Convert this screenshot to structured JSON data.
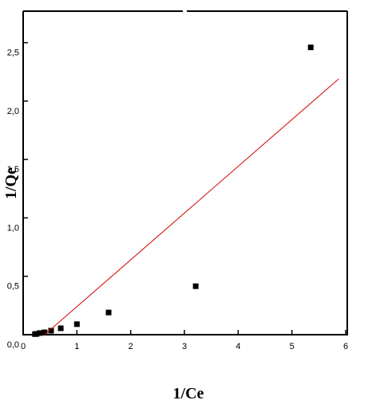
{
  "chart_data": {
    "type": "scatter",
    "x_label": "1/Ce",
    "y_label": "1/Qe",
    "xlim": [
      0,
      6
    ],
    "ylim": [
      0,
      2.77
    ],
    "xticks": [
      0,
      1,
      2,
      3,
      4,
      5,
      6
    ],
    "yticks": [
      {
        "value": 0,
        "label": "0,0"
      },
      {
        "value": 0.5,
        "label": "0,5"
      },
      {
        "value": 1.0,
        "label": "1,0"
      },
      {
        "value": 1.5,
        "label": "1,5"
      },
      {
        "value": 2.0,
        "label": "2,0"
      },
      {
        "value": 2.5,
        "label": "2,5"
      }
    ],
    "series": [
      {
        "color": "#000000",
        "marker": "square",
        "x": [
          0.22,
          0.25,
          0.31,
          0.4,
          0.52,
          0.7,
          1.0,
          1.59,
          3.21,
          5.35
        ],
        "values": [
          0.005,
          0.007,
          0.014,
          0.02,
          0.034,
          0.055,
          0.09,
          0.19,
          0.415,
          2.46
        ]
      },
      {
        "color": "#d40000",
        "marker": "line",
        "x": [
          0.4,
          5.87
        ],
        "values": [
          0.0,
          2.19
        ]
      }
    ]
  }
}
